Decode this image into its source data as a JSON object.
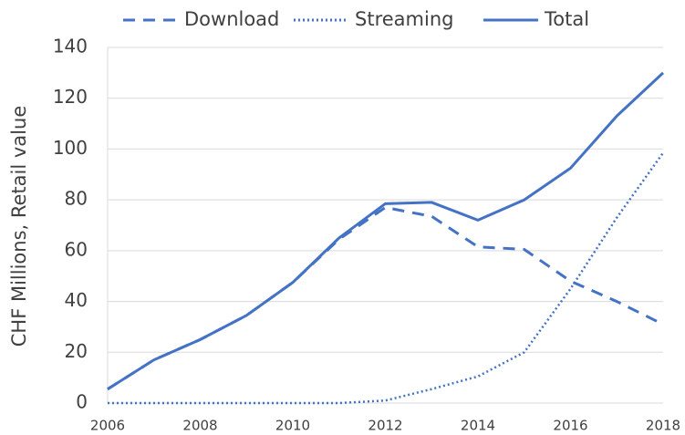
{
  "chart_data": {
    "type": "line",
    "y_label": "CHF Millions, Retail value",
    "x": [
      2006,
      2007,
      2008,
      2009,
      2010,
      2011,
      2012,
      2013,
      2014,
      2015,
      2016,
      2017,
      2018
    ],
    "series": [
      {
        "name": "Download",
        "color": "#4472c4",
        "line_style": "dashed",
        "values": [
          5.5,
          17,
          25,
          34.5,
          47.5,
          64.5,
          77,
          73.5,
          61.5,
          60.5,
          48,
          40,
          31
        ]
      },
      {
        "name": "Streaming",
        "color": "#4472c4",
        "line_style": "dotted",
        "values": [
          0,
          0,
          0,
          0,
          0,
          0,
          1,
          5.5,
          10.5,
          20,
          45,
          73,
          98.5
        ]
      },
      {
        "name": "Total",
        "color": "#4472c4",
        "line_style": "solid",
        "values": [
          5.5,
          17,
          25,
          34.5,
          47.5,
          65,
          78.5,
          79,
          72,
          80,
          92.5,
          113,
          130
        ]
      }
    ],
    "xlim": [
      2006,
      2018
    ],
    "xticks": [
      2006,
      2008,
      2010,
      2012,
      2014,
      2016,
      2018
    ],
    "ylim": [
      0,
      140
    ],
    "yticks": [
      0,
      20,
      40,
      60,
      80,
      100,
      120,
      140
    ],
    "grid": true,
    "legend": "top"
  }
}
